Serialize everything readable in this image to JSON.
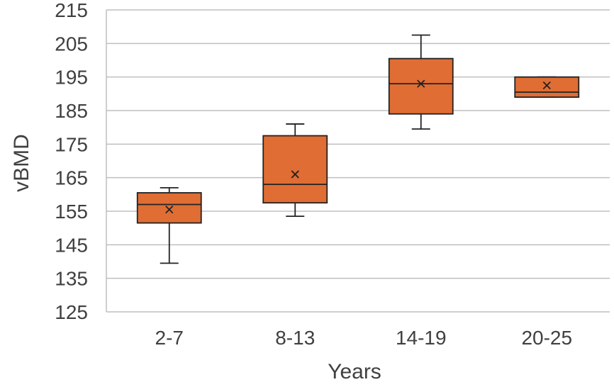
{
  "chart_data": {
    "type": "box",
    "xlabel": "Years",
    "ylabel": "vBMD",
    "ylim": [
      125,
      215
    ],
    "yticks": [
      125,
      135,
      145,
      155,
      165,
      175,
      185,
      195,
      205,
      215
    ],
    "yticks_labels": [
      "125",
      "135",
      "145",
      "155",
      "165",
      "175",
      "185",
      "195",
      "205",
      "215"
    ],
    "categories": [
      "2-7",
      "8-13",
      "14-19",
      "20-25"
    ],
    "grid": true,
    "box_color": "#e06d34",
    "boxes": [
      {
        "category": "2-7",
        "min": 139.5,
        "q1": 151.5,
        "median": 157,
        "q3": 160.5,
        "max": 162,
        "mean": 155.5
      },
      {
        "category": "8-13",
        "min": 153.5,
        "q1": 157.5,
        "median": 163,
        "q3": 177.5,
        "max": 181,
        "mean": 166
      },
      {
        "category": "14-19",
        "min": 179.5,
        "q1": 184,
        "median": 193,
        "q3": 200.5,
        "max": 207.5,
        "mean": 193
      },
      {
        "category": "20-25",
        "min": 189,
        "q1": 189,
        "median": 190.5,
        "q3": 195,
        "max": 195,
        "mean": 192.5
      }
    ]
  }
}
